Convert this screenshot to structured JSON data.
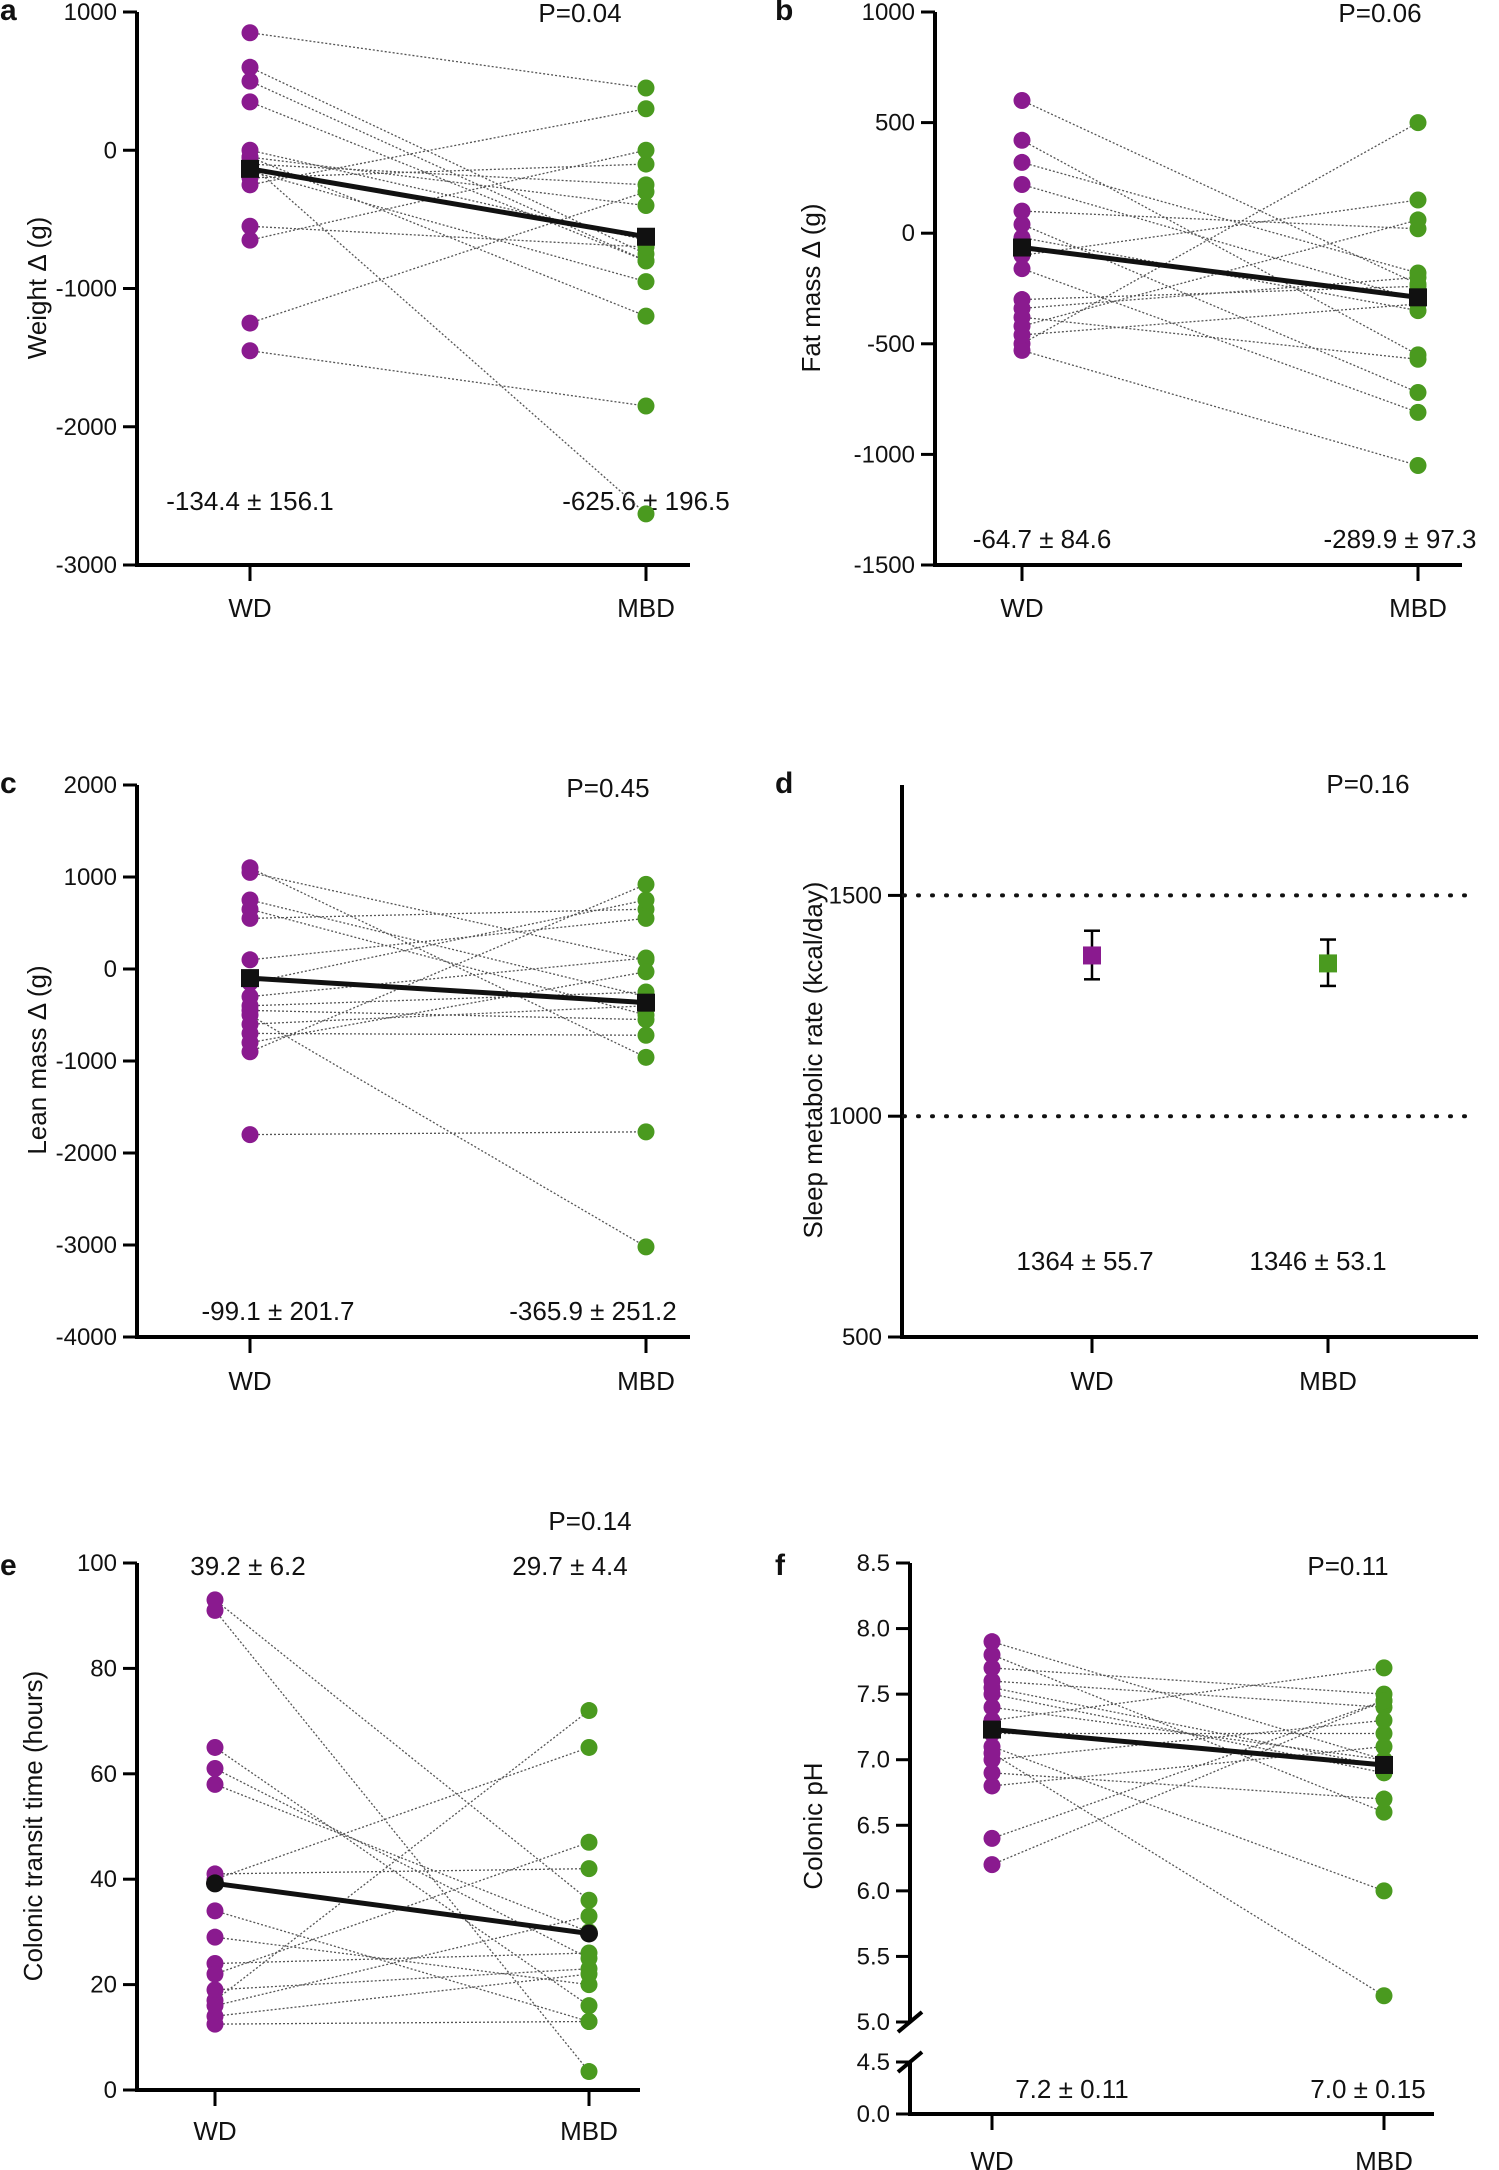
{
  "colors": {
    "wd": "#8a1a8f",
    "mbd": "#4a9a1f",
    "mean": "#111111",
    "pair_line": "#555555"
  },
  "chart_data": [
    {
      "panel": "a",
      "type": "scatter",
      "title": "",
      "xlabel": "",
      "ylabel": "Weight Δ (g)",
      "categories": [
        "WD",
        "MBD"
      ],
      "ylim": [
        -3000,
        1000
      ],
      "yticks": [
        -3000,
        -2000,
        -1000,
        0,
        1000
      ],
      "pvalue": "P=0.04",
      "summaries": [
        "-134.4 ± 156.1",
        "-625.6 ± 196.5"
      ],
      "mean_marker": "square",
      "means": [
        -134.4,
        -625.6
      ],
      "pairs": [
        [
          850,
          450
        ],
        [
          600,
          -750
        ],
        [
          500,
          -800
        ],
        [
          350,
          -800
        ],
        [
          0,
          -650
        ],
        [
          -50,
          -400
        ],
        [
          -100,
          -250
        ],
        [
          -200,
          -100
        ],
        [
          -250,
          300
        ],
        [
          -550,
          -700
        ],
        [
          -650,
          0
        ],
        [
          -1250,
          -300
        ],
        [
          -1450,
          -1850
        ],
        [
          -150,
          -950
        ],
        [
          -50,
          -1200
        ],
        [
          -100,
          -2630
        ]
      ]
    },
    {
      "panel": "b",
      "type": "scatter",
      "title": "",
      "xlabel": "",
      "ylabel": "Fat mass Δ (g)",
      "categories": [
        "WD",
        "MBD"
      ],
      "ylim": [
        -1500,
        1000
      ],
      "yticks": [
        -1500,
        -1000,
        -500,
        0,
        500,
        1000
      ],
      "pvalue": "P=0.06",
      "summaries": [
        "-64.7 ± 84.6",
        "-289.9 ± 97.3"
      ],
      "mean_marker": "square",
      "means": [
        -64.7,
        -289.9
      ],
      "pairs": [
        [
          600,
          -230
        ],
        [
          420,
          -550
        ],
        [
          320,
          -180
        ],
        [
          220,
          -300
        ],
        [
          100,
          20
        ],
        [
          40,
          -720
        ],
        [
          -20,
          -350
        ],
        [
          -100,
          150
        ],
        [
          -160,
          -810
        ],
        [
          -300,
          -240
        ],
        [
          -340,
          -200
        ],
        [
          -380,
          -570
        ],
        [
          -420,
          60
        ],
        [
          -500,
          500
        ],
        [
          -530,
          -1050
        ],
        [
          -460,
          -320
        ]
      ]
    },
    {
      "panel": "c",
      "type": "scatter",
      "title": "",
      "xlabel": "",
      "ylabel": "Lean mass Δ (g)",
      "categories": [
        "WD",
        "MBD"
      ],
      "ylim": [
        -4000,
        2000
      ],
      "yticks": [
        -4000,
        -3000,
        -2000,
        -1000,
        0,
        1000,
        2000
      ],
      "pvalue": "P=0.45",
      "summaries": [
        "-99.1 ± 201.7",
        "-365.9 ± 251.2"
      ],
      "mean_marker": "square",
      "means": [
        -99.1,
        -365.9
      ],
      "pairs": [
        [
          1100,
          -960
        ],
        [
          1050,
          100
        ],
        [
          750,
          -300
        ],
        [
          650,
          -500
        ],
        [
          550,
          650
        ],
        [
          100,
          550
        ],
        [
          -150,
          750
        ],
        [
          -300,
          120
        ],
        [
          -400,
          -250
        ],
        [
          -500,
          -3020
        ],
        [
          -600,
          -400
        ],
        [
          -700,
          -720
        ],
        [
          -800,
          -30
        ],
        [
          -900,
          920
        ],
        [
          -1800,
          -1770
        ],
        [
          -450,
          -550
        ]
      ]
    },
    {
      "panel": "d",
      "type": "scatter",
      "title": "",
      "xlabel": "",
      "ylabel": "Sleep metabolic rate (kcal/day)",
      "categories": [
        "WD",
        "MBD"
      ],
      "ylim": [
        500,
        1750
      ],
      "yticks": [
        500,
        1000,
        1500
      ],
      "reference_lines": [
        1000,
        1500
      ],
      "pvalue": "P=0.16",
      "summaries": [
        "1364 ± 55.7",
        "1346 ± 53.1"
      ],
      "means": [
        1364,
        1346
      ],
      "errors": [
        [
          1310,
          1420
        ],
        [
          1295,
          1400
        ]
      ]
    },
    {
      "panel": "e",
      "type": "scatter",
      "title": "",
      "xlabel": "",
      "ylabel": "Colonic transit time (hours)",
      "categories": [
        "WD",
        "MBD"
      ],
      "ylim": [
        0,
        100
      ],
      "yticks": [
        0,
        20,
        40,
        60,
        80,
        100
      ],
      "pvalue": "P=0.14",
      "summaries": [
        "39.2 ± 6.2",
        "29.7 ± 4.4"
      ],
      "mean_marker": "circle",
      "means": [
        39.2,
        29.7
      ],
      "pairs": [
        [
          93,
          36
        ],
        [
          91,
          3.5
        ],
        [
          65,
          16
        ],
        [
          61,
          25
        ],
        [
          58,
          30
        ],
        [
          41,
          42
        ],
        [
          40,
          65
        ],
        [
          34,
          13
        ],
        [
          29,
          20
        ],
        [
          24,
          26
        ],
        [
          22,
          47
        ],
        [
          19,
          23
        ],
        [
          17,
          72
        ],
        [
          14,
          22
        ],
        [
          12.5,
          13
        ],
        [
          16,
          33
        ]
      ]
    },
    {
      "panel": "f",
      "type": "scatter",
      "title": "",
      "xlabel": "",
      "ylabel": "Colonic pH",
      "categories": [
        "WD",
        "MBD"
      ],
      "ylim": [
        0.0,
        8.5
      ],
      "yticks": [
        0.0,
        4.5,
        5.0,
        5.5,
        6.0,
        6.5,
        7.0,
        7.5,
        8.0,
        8.5
      ],
      "axis_break": [
        4.5,
        5.0
      ],
      "pvalue": "P=0.11",
      "summaries": [
        "7.2 ± 0.11",
        "7.0 ± 0.15"
      ],
      "mean_marker": "square",
      "means": [
        7.23,
        6.96
      ],
      "pairs": [
        [
          7.9,
          7.0
        ],
        [
          7.8,
          6.6
        ],
        [
          7.7,
          7.5
        ],
        [
          7.6,
          7.4
        ],
        [
          7.5,
          6.9
        ],
        [
          7.4,
          7.0
        ],
        [
          7.3,
          7.7
        ],
        [
          7.2,
          7.2
        ],
        [
          7.1,
          6.0
        ],
        [
          7.0,
          7.3
        ],
        [
          6.9,
          6.7
        ],
        [
          6.8,
          7.1
        ],
        [
          6.4,
          7.45
        ],
        [
          6.2,
          7.45
        ],
        [
          7.05,
          5.2
        ],
        [
          7.55,
          6.95
        ]
      ]
    }
  ]
}
